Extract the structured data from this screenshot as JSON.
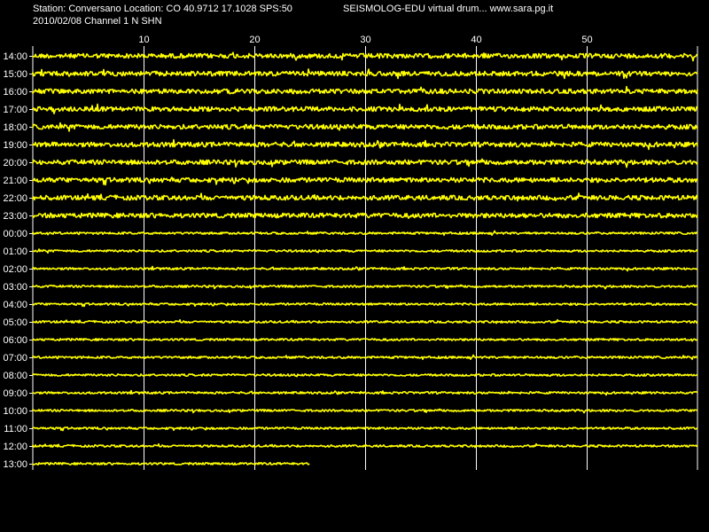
{
  "header": {
    "station_line": "Station: Conversano Location: CO 40.9712 17.1028 SPS:50",
    "app_line": "SEISMOLOG-EDU virtual drum... www.sara.pg.it",
    "date_line": "2010/02/08  Channel 1 N SHN"
  },
  "colors": {
    "background": "#000000",
    "trace": "#ffff00",
    "grid": "#ffffff",
    "text": "#ffffff"
  },
  "chart_data": {
    "type": "line",
    "title": "",
    "xlabel": "",
    "ylabel": "",
    "x_unit_range": [
      0,
      60
    ],
    "xlim": [
      0,
      60
    ],
    "x_ticks": [
      10,
      20,
      30,
      40,
      50
    ],
    "x_tick_labels": [
      "10",
      "20",
      "30",
      "40",
      "50"
    ],
    "vertical_grid": true,
    "rows": [
      {
        "hour": "14:00",
        "end_minute": 60,
        "amplitude": "medium"
      },
      {
        "hour": "15:00",
        "end_minute": 60,
        "amplitude": "medium"
      },
      {
        "hour": "16:00",
        "end_minute": 60,
        "amplitude": "medium"
      },
      {
        "hour": "17:00",
        "end_minute": 60,
        "amplitude": "medium"
      },
      {
        "hour": "18:00",
        "end_minute": 60,
        "amplitude": "medium"
      },
      {
        "hour": "19:00",
        "end_minute": 60,
        "amplitude": "medium"
      },
      {
        "hour": "20:00",
        "end_minute": 60,
        "amplitude": "medium"
      },
      {
        "hour": "21:00",
        "end_minute": 60,
        "amplitude": "medium"
      },
      {
        "hour": "22:00",
        "end_minute": 60,
        "amplitude": "medium"
      },
      {
        "hour": "23:00",
        "end_minute": 60,
        "amplitude": "medium"
      },
      {
        "hour": "00:00",
        "end_minute": 60,
        "amplitude": "low"
      },
      {
        "hour": "01:00",
        "end_minute": 60,
        "amplitude": "low"
      },
      {
        "hour": "02:00",
        "end_minute": 60,
        "amplitude": "low"
      },
      {
        "hour": "03:00",
        "end_minute": 60,
        "amplitude": "low"
      },
      {
        "hour": "04:00",
        "end_minute": 60,
        "amplitude": "low"
      },
      {
        "hour": "05:00",
        "end_minute": 60,
        "amplitude": "low"
      },
      {
        "hour": "06:00",
        "end_minute": 60,
        "amplitude": "low"
      },
      {
        "hour": "07:00",
        "end_minute": 60,
        "amplitude": "low"
      },
      {
        "hour": "08:00",
        "end_minute": 60,
        "amplitude": "low"
      },
      {
        "hour": "09:00",
        "end_minute": 60,
        "amplitude": "low"
      },
      {
        "hour": "10:00",
        "end_minute": 60,
        "amplitude": "low"
      },
      {
        "hour": "11:00",
        "end_minute": 60,
        "amplitude": "low"
      },
      {
        "hour": "12:00",
        "end_minute": 60,
        "amplitude": "low"
      },
      {
        "hour": "13:00",
        "end_minute": 25,
        "amplitude": "low"
      }
    ]
  }
}
